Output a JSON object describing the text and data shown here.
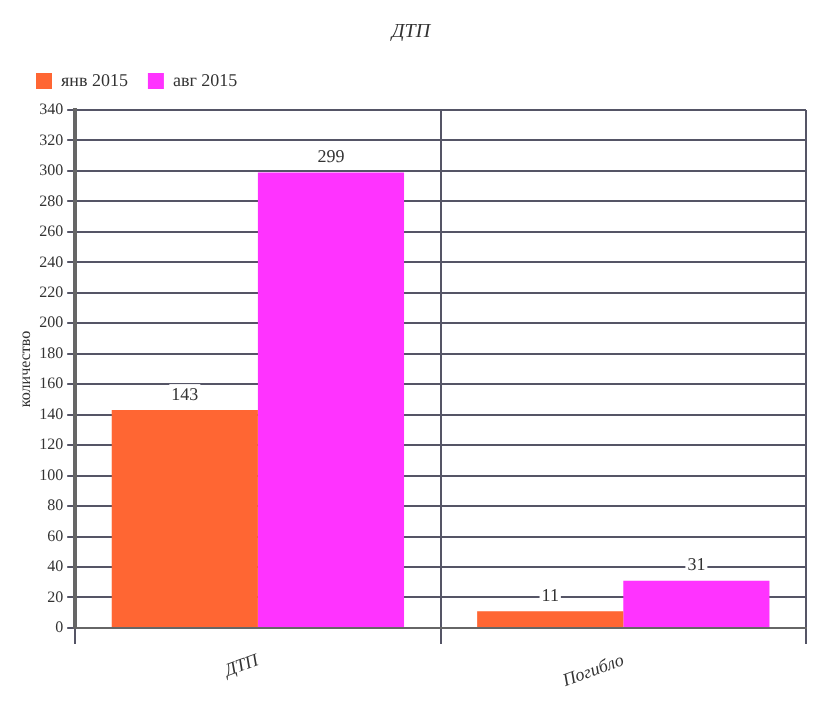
{
  "chart_data": {
    "type": "bar",
    "title": "ДТП",
    "ylabel": "количество",
    "categories": [
      "ДТП",
      "Погибло"
    ],
    "series": [
      {
        "name": "янв 2015",
        "color": "#ff6633",
        "values": [
          143,
          11
        ]
      },
      {
        "name": "авг 2015",
        "color": "#ff33ff",
        "values": [
          299,
          31
        ]
      }
    ],
    "ylim": [
      0,
      340
    ],
    "yticks": [
      0,
      20,
      40,
      60,
      80,
      100,
      120,
      140,
      160,
      180,
      200,
      220,
      240,
      260,
      280,
      300,
      320,
      340
    ],
    "grid": true,
    "legend": "top left",
    "data_labels": true
  }
}
